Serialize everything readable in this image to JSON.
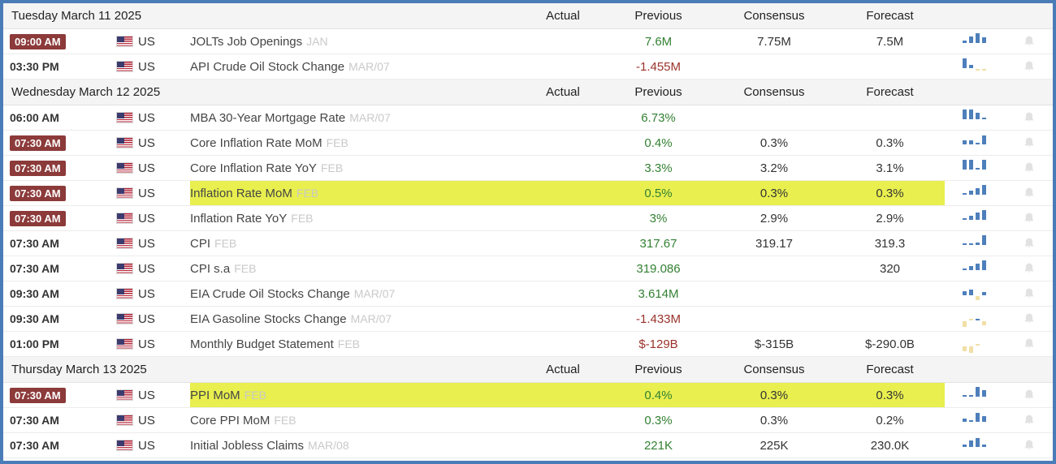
{
  "columns": {
    "actual": "Actual",
    "previous": "Previous",
    "consensus": "Consensus",
    "forecast": "Forecast"
  },
  "colors": {
    "border_blue": "#4a7cb7",
    "badge_maroon": "#8c3a3a",
    "value_green": "#338033",
    "value_red": "#9a322a",
    "highlight_yellow": "#e8ef4e",
    "chart_blue": "#4e7fbb",
    "chart_yellow": "#f1dfa6"
  },
  "icons": {
    "chart": "mini-bar-chart-icon",
    "bell": "bell-icon",
    "flag": "us-flag-icon"
  },
  "sections": [
    {
      "date": "Tuesday March 11 2025",
      "rows": [
        {
          "time": "09:00 AM",
          "badge": true,
          "country": "US",
          "event": "JOLTs Job Openings",
          "period": "JAN",
          "actual": "",
          "previous": "7.6M",
          "prev_tone": "green",
          "consensus": "7.75M",
          "forecast": "7.5M",
          "highlight": false,
          "chart": [
            [
              3,
              "b"
            ],
            [
              8,
              "b"
            ],
            [
              12,
              "b"
            ],
            [
              7,
              "b"
            ]
          ]
        },
        {
          "time": "03:30 PM",
          "badge": false,
          "country": "US",
          "event": "API Crude Oil Stock Change",
          "period": "MAR/07",
          "actual": "",
          "previous": "-1.455M",
          "prev_tone": "red",
          "consensus": "",
          "forecast": "",
          "highlight": false,
          "chart": [
            [
              12,
              "b"
            ],
            [
              4,
              "b"
            ],
            [
              -2,
              "y"
            ],
            [
              -2,
              "y"
            ]
          ]
        }
      ]
    },
    {
      "date": "Wednesday March 12 2025",
      "rows": [
        {
          "time": "06:00 AM",
          "badge": false,
          "country": "US",
          "event": "MBA 30-Year Mortgage Rate",
          "period": "MAR/07",
          "actual": "",
          "previous": "6.73%",
          "prev_tone": "green",
          "consensus": "",
          "forecast": "",
          "highlight": false,
          "chart": [
            [
              12,
              "b"
            ],
            [
              12,
              "b"
            ],
            [
              8,
              "b"
            ],
            [
              2,
              "b"
            ]
          ]
        },
        {
          "time": "07:30 AM",
          "badge": true,
          "country": "US",
          "event": "Core Inflation Rate MoM",
          "period": "FEB",
          "actual": "",
          "previous": "0.4%",
          "prev_tone": "green",
          "consensus": "0.3%",
          "forecast": "0.3%",
          "highlight": false,
          "chart": [
            [
              5,
              "b"
            ],
            [
              5,
              "b"
            ],
            [
              2,
              "b"
            ],
            [
              11,
              "b"
            ]
          ]
        },
        {
          "time": "07:30 AM",
          "badge": true,
          "country": "US",
          "event": "Core Inflation Rate YoY",
          "period": "FEB",
          "actual": "",
          "previous": "3.3%",
          "prev_tone": "green",
          "consensus": "3.2%",
          "forecast": "3.1%",
          "highlight": false,
          "chart": [
            [
              12,
              "b"
            ],
            [
              12,
              "b"
            ],
            [
              2,
              "b"
            ],
            [
              12,
              "b"
            ]
          ]
        },
        {
          "time": "07:30 AM",
          "badge": true,
          "country": "US",
          "event": "Inflation Rate MoM",
          "period": "FEB",
          "actual": "",
          "previous": "0.5%",
          "prev_tone": "green",
          "consensus": "0.3%",
          "forecast": "0.3%",
          "highlight": true,
          "chart": [
            [
              2,
              "b"
            ],
            [
              5,
              "b"
            ],
            [
              8,
              "b"
            ],
            [
              12,
              "b"
            ]
          ]
        },
        {
          "time": "07:30 AM",
          "badge": true,
          "country": "US",
          "event": "Inflation Rate YoY",
          "period": "FEB",
          "actual": "",
          "previous": "3%",
          "prev_tone": "green",
          "consensus": "2.9%",
          "forecast": "2.9%",
          "highlight": false,
          "chart": [
            [
              2,
              "b"
            ],
            [
              5,
              "b"
            ],
            [
              9,
              "b"
            ],
            [
              12,
              "b"
            ]
          ]
        },
        {
          "time": "07:30 AM",
          "badge": false,
          "country": "US",
          "event": "CPI",
          "period": "FEB",
          "actual": "",
          "previous": "317.67",
          "prev_tone": "green",
          "consensus": "319.17",
          "forecast": "319.3",
          "highlight": false,
          "chart": [
            [
              2,
              "b"
            ],
            [
              2,
              "b"
            ],
            [
              3,
              "b"
            ],
            [
              12,
              "b"
            ]
          ]
        },
        {
          "time": "07:30 AM",
          "badge": false,
          "country": "US",
          "event": "CPI s.a",
          "period": "FEB",
          "actual": "",
          "previous": "319.086",
          "prev_tone": "green",
          "consensus": "",
          "forecast": "320",
          "highlight": false,
          "chart": [
            [
              2,
              "b"
            ],
            [
              5,
              "b"
            ],
            [
              8,
              "b"
            ],
            [
              12,
              "b"
            ]
          ]
        },
        {
          "time": "09:30 AM",
          "badge": false,
          "country": "US",
          "event": "EIA Crude Oil Stocks Change",
          "period": "MAR/07",
          "actual": "",
          "previous": "3.614M",
          "prev_tone": "green",
          "consensus": "",
          "forecast": "",
          "highlight": false,
          "chart": [
            [
              5,
              "b"
            ],
            [
              7,
              "b"
            ],
            [
              -5,
              "y"
            ],
            [
              4,
              "b"
            ]
          ]
        },
        {
          "time": "09:30 AM",
          "badge": false,
          "country": "US",
          "event": "EIA Gasoline Stocks Change",
          "period": "MAR/07",
          "actual": "",
          "previous": "-1.433M",
          "prev_tone": "red",
          "consensus": "",
          "forecast": "",
          "highlight": false,
          "chart": [
            [
              -7,
              "y"
            ],
            [
              2,
              "y"
            ],
            [
              2,
              "b"
            ],
            [
              -5,
              "y"
            ]
          ]
        },
        {
          "time": "01:00 PM",
          "badge": false,
          "country": "US",
          "event": "Monthly Budget Statement",
          "period": "FEB",
          "actual": "",
          "previous": "$-129B",
          "prev_tone": "red",
          "consensus": "$-315B",
          "forecast": "$-290.0B",
          "highlight": false,
          "chart": [
            [
              -6,
              "y"
            ],
            [
              -8,
              "y"
            ],
            [
              2,
              "y"
            ]
          ]
        }
      ]
    },
    {
      "date": "Thursday March 13 2025",
      "rows": [
        {
          "time": "07:30 AM",
          "badge": true,
          "country": "US",
          "event": "PPI MoM",
          "period": "FEB",
          "actual": "",
          "previous": "0.4%",
          "prev_tone": "green",
          "consensus": "0.3%",
          "forecast": "0.3%",
          "highlight": true,
          "chart": [
            [
              2,
              "b"
            ],
            [
              2,
              "b"
            ],
            [
              12,
              "b"
            ],
            [
              8,
              "b"
            ]
          ]
        },
        {
          "time": "07:30 AM",
          "badge": false,
          "country": "US",
          "event": "Core PPI MoM",
          "period": "FEB",
          "actual": "",
          "previous": "0.3%",
          "prev_tone": "green",
          "consensus": "0.3%",
          "forecast": "0.2%",
          "highlight": false,
          "chart": [
            [
              4,
              "b"
            ],
            [
              2,
              "b"
            ],
            [
              11,
              "b"
            ],
            [
              7,
              "b"
            ]
          ]
        },
        {
          "time": "07:30 AM",
          "badge": false,
          "country": "US",
          "event": "Initial Jobless Claims",
          "period": "MAR/08",
          "actual": "",
          "previous": "221K",
          "prev_tone": "green",
          "consensus": "225K",
          "forecast": "230.0K",
          "highlight": false,
          "chart": [
            [
              3,
              "b"
            ],
            [
              8,
              "b"
            ],
            [
              11,
              "b"
            ],
            [
              3,
              "b"
            ]
          ]
        }
      ]
    }
  ]
}
